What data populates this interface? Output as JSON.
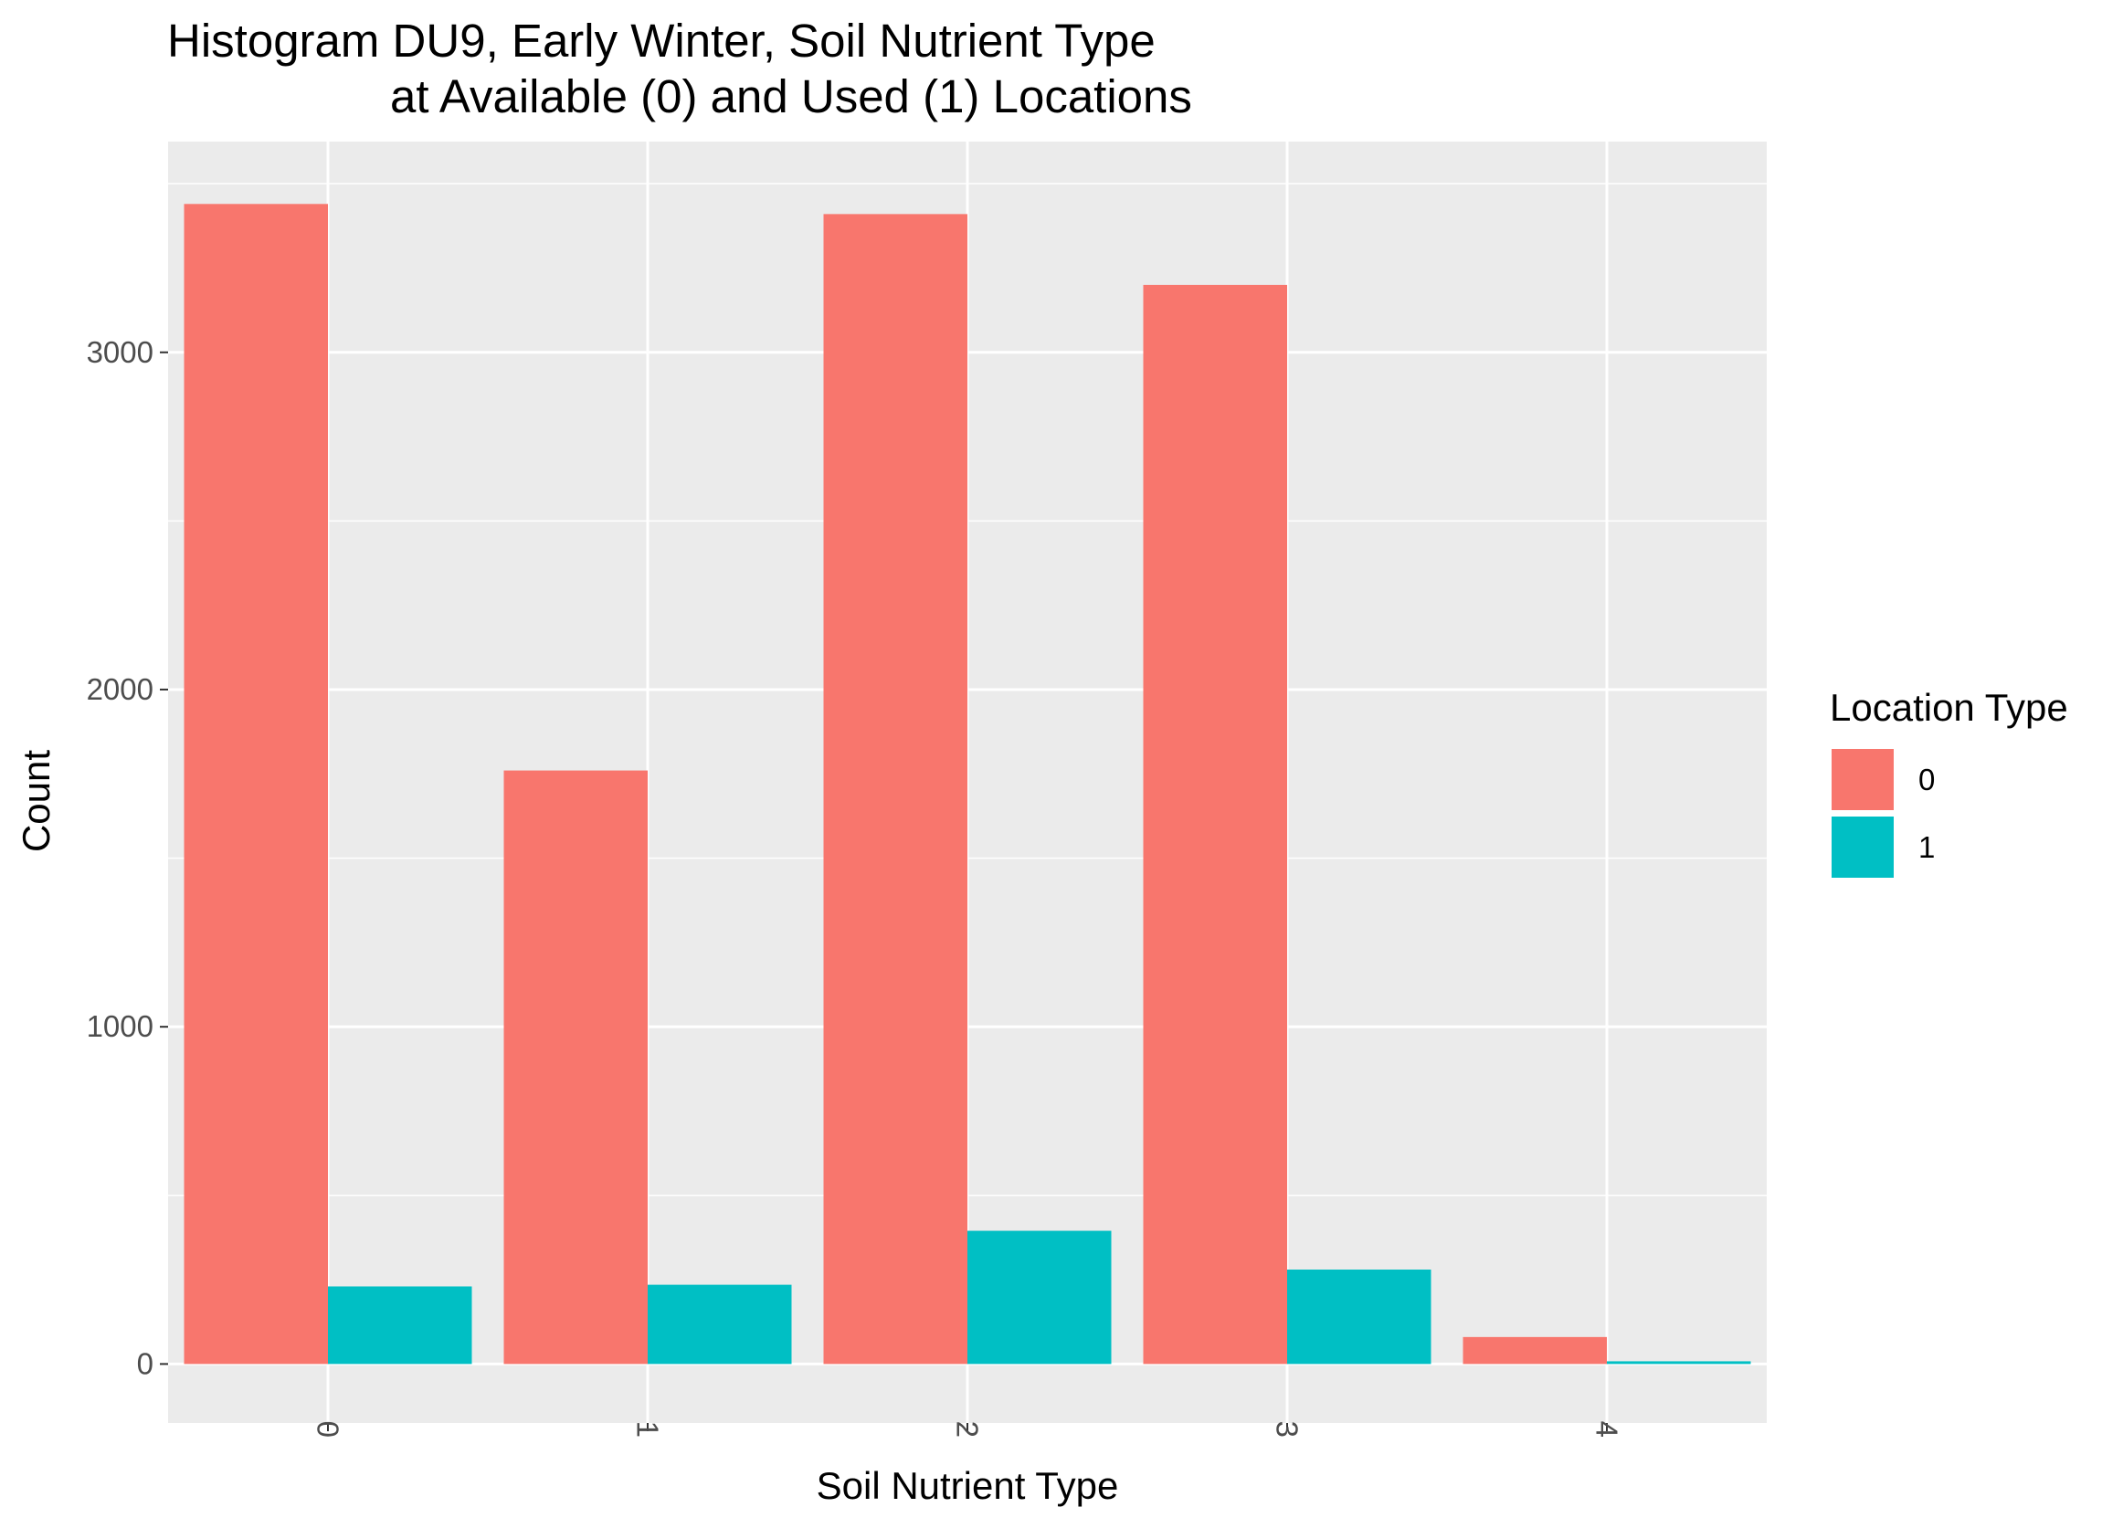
{
  "chart_data": {
    "type": "bar",
    "title_line1": "Histogram DU9, Early Winter, Soil Nutrient Type",
    "title_line2": "at Available (0) and Used (1) Locations",
    "xlabel": "Soil Nutrient Type",
    "ylabel": "Count",
    "categories": [
      "0",
      "1",
      "2",
      "3",
      "4"
    ],
    "series": [
      {
        "name": "0",
        "color": "#F8766D",
        "values": [
          3440,
          1760,
          3410,
          3200,
          80
        ]
      },
      {
        "name": "1",
        "color": "#00BFC4",
        "values": [
          230,
          235,
          395,
          280,
          8
        ]
      }
    ],
    "ylim": [
      -175,
      3625
    ],
    "yticks": [
      0,
      1000,
      2000,
      3000
    ],
    "grid": true,
    "legend": {
      "title": "Location Type",
      "position": "right"
    }
  }
}
